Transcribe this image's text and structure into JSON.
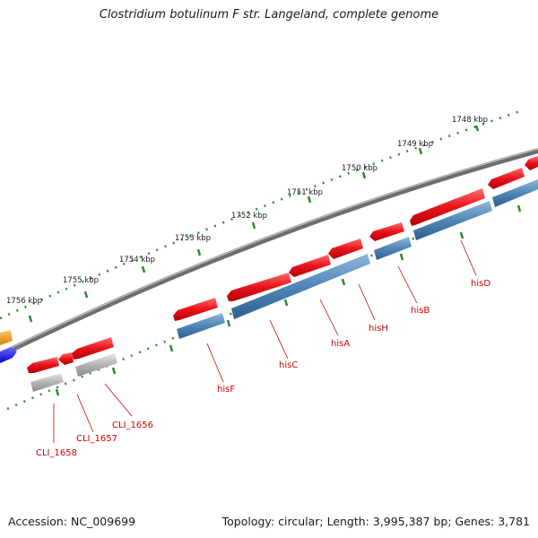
{
  "title": "Clostridium botulinum F str. Langeland, complete genome",
  "footer": {
    "accession": "Accession: NC_009699",
    "topology": "Topology: circular; Length: 3,995,387 bp; Genes: 3,781"
  },
  "ruler": {
    "labels": [
      "1748 kbp",
      "1749 kbp",
      "1750 kbp",
      "1751 kbp",
      "1752 kbp",
      "1753 kbp",
      "1754 kbp",
      "1755 kbp",
      "1756 kbp"
    ]
  },
  "gene_labels": [
    "CLI_1658",
    "CLI_1657",
    "CLI_1656",
    "hisF",
    "hisC",
    "hisA",
    "hisH",
    "hisB",
    "hisD"
  ],
  "colors": {
    "forward_gene": "#e8141a",
    "reverse_gene": "#4f86b8",
    "hypothetical": "#b4b4b4",
    "backbone": "#8a8a8a",
    "ruler": "#2e8b2e",
    "label_line": "#cc0000",
    "orange_gene": "#f2a01c",
    "blue_gene": "#1a1aee"
  }
}
